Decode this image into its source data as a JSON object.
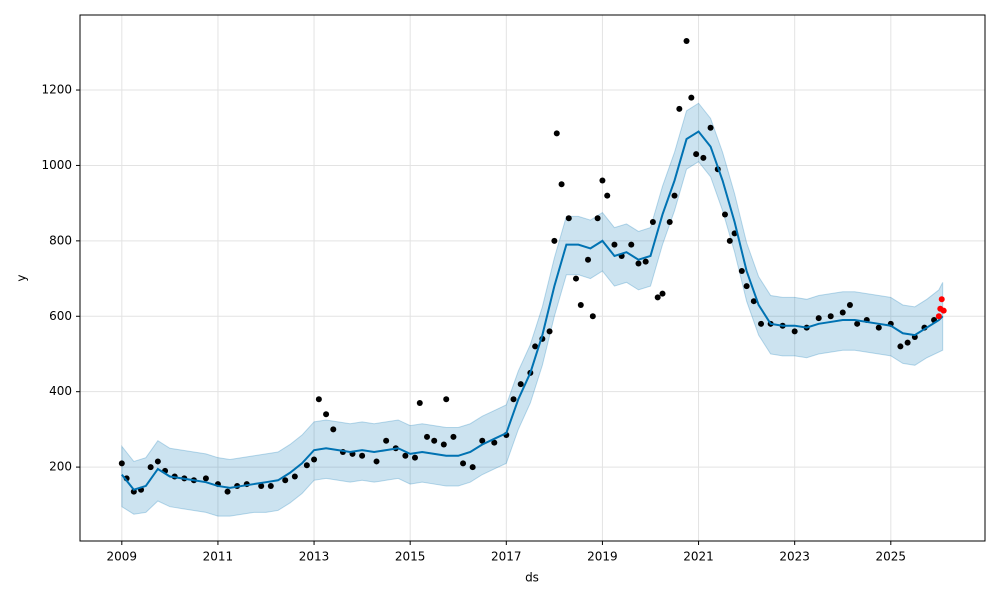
{
  "chart_data": {
    "type": "forecast",
    "x_label": "ds",
    "y_label": "y",
    "grid": true,
    "xlim": [
      2008.13,
      2026.96
    ],
    "ylim": [
      4,
      1399
    ],
    "xticks": [
      2009,
      2011,
      2013,
      2015,
      2017,
      2019,
      2021,
      2023,
      2025
    ],
    "yticks": [
      200,
      400,
      600,
      800,
      1000,
      1200
    ],
    "forecast": {
      "color": "#0072b2",
      "band_color": "#0072b2",
      "x": [
        2009.0,
        2009.25,
        2009.5,
        2009.75,
        2010.0,
        2010.25,
        2010.5,
        2010.75,
        2011.0,
        2011.25,
        2011.5,
        2011.75,
        2012.0,
        2012.25,
        2012.5,
        2012.75,
        2013.0,
        2013.25,
        2013.5,
        2013.75,
        2014.0,
        2014.25,
        2014.5,
        2014.75,
        2015.0,
        2015.25,
        2015.5,
        2015.75,
        2016.0,
        2016.25,
        2016.5,
        2016.75,
        2017.0,
        2017.25,
        2017.5,
        2017.75,
        2018.0,
        2018.25,
        2018.5,
        2018.75,
        2019.0,
        2019.25,
        2019.5,
        2019.75,
        2020.0,
        2020.25,
        2020.5,
        2020.75,
        2021.0,
        2021.25,
        2021.5,
        2021.75,
        2022.0,
        2022.25,
        2022.5,
        2022.75,
        2023.0,
        2023.25,
        2023.5,
        2023.75,
        2024.0,
        2024.25,
        2024.5,
        2024.75,
        2025.0,
        2025.25,
        2025.5,
        2025.75,
        2026.0,
        2026.08
      ],
      "values": [
        180,
        140,
        150,
        195,
        175,
        170,
        165,
        160,
        150,
        145,
        150,
        155,
        160,
        165,
        185,
        210,
        245,
        250,
        245,
        240,
        245,
        240,
        245,
        250,
        235,
        240,
        235,
        230,
        230,
        240,
        260,
        275,
        290,
        380,
        450,
        550,
        680,
        790,
        790,
        780,
        800,
        760,
        770,
        750,
        760,
        870,
        960,
        1070,
        1090,
        1050,
        960,
        850,
        720,
        630,
        580,
        575,
        575,
        570,
        580,
        585,
        590,
        590,
        585,
        580,
        575,
        555,
        550,
        570,
        590,
        600
      ],
      "lower": [
        95,
        75,
        80,
        110,
        95,
        90,
        85,
        80,
        70,
        70,
        75,
        80,
        80,
        85,
        105,
        130,
        165,
        170,
        165,
        160,
        165,
        160,
        165,
        170,
        155,
        160,
        155,
        150,
        150,
        160,
        180,
        195,
        210,
        300,
        370,
        470,
        600,
        710,
        710,
        700,
        720,
        680,
        690,
        670,
        680,
        790,
        880,
        990,
        1010,
        970,
        880,
        770,
        640,
        550,
        500,
        495,
        495,
        490,
        500,
        505,
        510,
        510,
        505,
        500,
        495,
        475,
        470,
        490,
        505,
        510
      ],
      "upper": [
        255,
        215,
        225,
        270,
        250,
        245,
        240,
        235,
        225,
        220,
        225,
        230,
        235,
        240,
        260,
        285,
        320,
        325,
        320,
        315,
        320,
        315,
        320,
        325,
        310,
        315,
        310,
        305,
        305,
        315,
        335,
        350,
        365,
        455,
        525,
        625,
        755,
        865,
        865,
        855,
        875,
        835,
        845,
        825,
        835,
        945,
        1035,
        1145,
        1165,
        1125,
        1035,
        925,
        795,
        705,
        655,
        650,
        650,
        645,
        655,
        660,
        665,
        665,
        660,
        655,
        650,
        630,
        625,
        645,
        670,
        690
      ]
    },
    "observed": {
      "color": "#000000",
      "x": [
        2009.0,
        2009.1,
        2009.25,
        2009.4,
        2009.6,
        2009.75,
        2009.9,
        2010.1,
        2010.3,
        2010.5,
        2010.75,
        2011.0,
        2011.2,
        2011.4,
        2011.6,
        2011.9,
        2012.1,
        2012.4,
        2012.6,
        2012.85,
        2013.0,
        2013.1,
        2013.25,
        2013.4,
        2013.6,
        2013.8,
        2014.0,
        2014.3,
        2014.5,
        2014.7,
        2014.9,
        2015.1,
        2015.2,
        2015.35,
        2015.5,
        2015.7,
        2015.75,
        2015.9,
        2016.1,
        2016.3,
        2016.5,
        2016.75,
        2017.0,
        2017.15,
        2017.3,
        2017.5,
        2017.6,
        2017.75,
        2017.9,
        2018.0,
        2018.05,
        2018.15,
        2018.3,
        2018.45,
        2018.55,
        2018.7,
        2018.8,
        2018.9,
        2019.0,
        2019.1,
        2019.25,
        2019.4,
        2019.6,
        2019.75,
        2019.9,
        2020.05,
        2020.15,
        2020.25,
        2020.4,
        2020.5,
        2020.6,
        2020.75,
        2020.85,
        2020.95,
        2021.1,
        2021.25,
        2021.4,
        2021.55,
        2021.65,
        2021.75,
        2021.9,
        2022.0,
        2022.15,
        2022.3,
        2022.5,
        2022.75,
        2023.0,
        2023.25,
        2023.5,
        2023.75,
        2024.0,
        2024.15,
        2024.3,
        2024.5,
        2024.75,
        2025.0,
        2025.2,
        2025.35,
        2025.5,
        2025.7,
        2025.9
      ],
      "values": [
        210,
        170,
        135,
        140,
        200,
        215,
        190,
        175,
        170,
        165,
        170,
        155,
        135,
        150,
        155,
        150,
        150,
        165,
        175,
        205,
        220,
        380,
        340,
        300,
        240,
        235,
        230,
        215,
        270,
        250,
        230,
        225,
        370,
        280,
        270,
        260,
        380,
        280,
        210,
        200,
        270,
        265,
        285,
        380,
        420,
        450,
        520,
        540,
        560,
        800,
        1085,
        950,
        860,
        700,
        630,
        750,
        600,
        860,
        960,
        920,
        790,
        760,
        790,
        740,
        745,
        850,
        650,
        660,
        850,
        920,
        1150,
        1330,
        1180,
        1030,
        1020,
        1100,
        990,
        870,
        800,
        820,
        720,
        680,
        640,
        580,
        580,
        575,
        560,
        570,
        595,
        600,
        610,
        630,
        580,
        590,
        570,
        580,
        520,
        530,
        545,
        570,
        590
      ]
    },
    "recent": {
      "color": "#ff0000",
      "x": [
        2026.0,
        2026.03,
        2026.06,
        2026.1
      ],
      "values": [
        600,
        620,
        645,
        615
      ]
    }
  }
}
